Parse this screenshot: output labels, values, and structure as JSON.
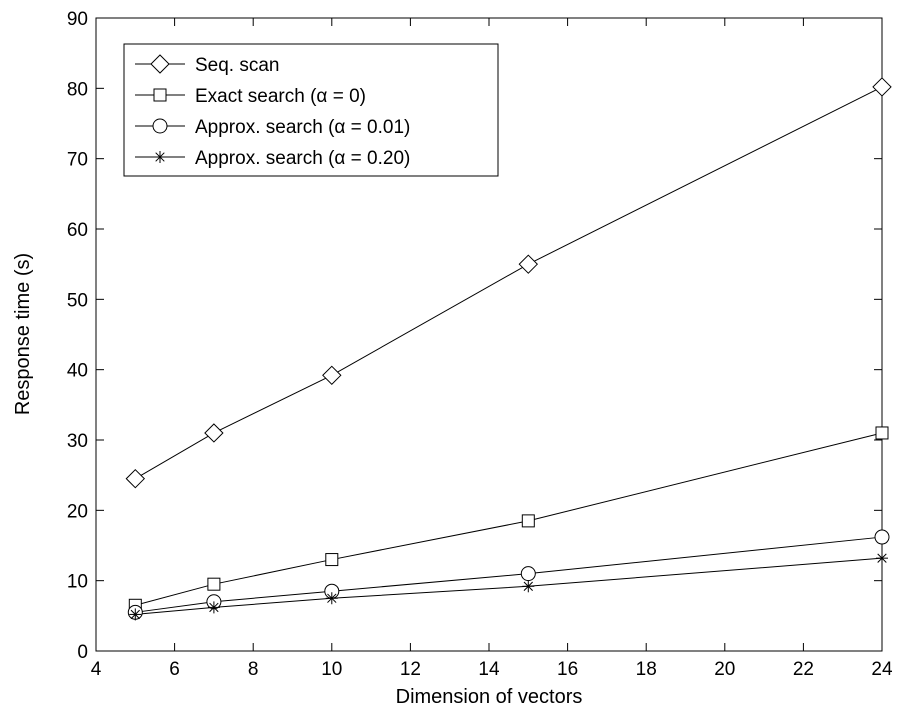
{
  "chart_data": {
    "type": "line",
    "title": "",
    "xlabel": "Dimension of vectors",
    "ylabel": "Response time (s)",
    "xlim": [
      4,
      24
    ],
    "ylim": [
      0,
      90
    ],
    "xticks": [
      4,
      6,
      8,
      10,
      12,
      14,
      16,
      18,
      20,
      22,
      24
    ],
    "yticks": [
      0,
      10,
      20,
      30,
      40,
      50,
      60,
      70,
      80,
      90
    ],
    "grid": false,
    "legend_position": "top-left",
    "line_color": "#000000",
    "x": [
      5,
      7,
      10,
      15,
      24
    ],
    "series": [
      {
        "name": "Seq. scan",
        "marker": "diamond",
        "values": [
          24.5,
          31,
          39.2,
          55,
          80.2
        ]
      },
      {
        "name": "Exact search (α = 0)",
        "marker": "square",
        "values": [
          6.5,
          9.5,
          13,
          18.5,
          31
        ]
      },
      {
        "name": "Approx. search (α = 0.01)",
        "marker": "circle",
        "values": [
          5.5,
          7,
          8.5,
          11,
          16.2
        ]
      },
      {
        "name": "Approx. search (α = 0.20)",
        "marker": "asterisk",
        "values": [
          5.2,
          6.2,
          7.5,
          9.2,
          13.2
        ]
      }
    ]
  }
}
